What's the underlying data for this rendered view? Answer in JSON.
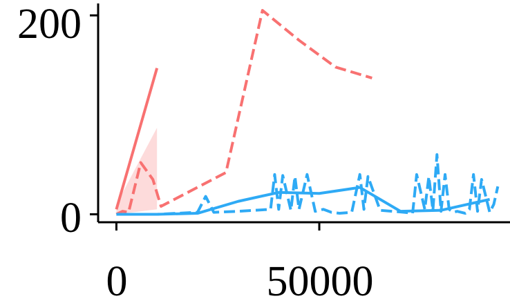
{
  "chart_data": {
    "type": "line",
    "title": "",
    "xlabel": "",
    "ylabel": "",
    "xlim": [
      -4500,
      97000
    ],
    "ylim": [
      -8,
      212
    ],
    "grid": false,
    "legend": "none",
    "x_ticks": [
      {
        "value": 0,
        "label": "0"
      },
      {
        "value": 50000,
        "label": "50000"
      }
    ],
    "y_ticks": [
      {
        "value": 0,
        "label": "0"
      },
      {
        "value": 200,
        "label": "200"
      }
    ],
    "series": [
      {
        "color": "#f87171",
        "style": "solid",
        "x": [
          0,
          10000
        ],
        "y": [
          5,
          147
        ],
        "band": {
          "x": [
            0,
            10000
          ],
          "lower": [
            0,
            5
          ],
          "upper": [
            10,
            87
          ]
        }
      },
      {
        "color": "#f87171",
        "style": "dashed",
        "x": [
          0,
          1500,
          3000,
          6000,
          9000,
          11000,
          27000,
          36000,
          45000,
          54000,
          63000
        ],
        "y": [
          0,
          3,
          2,
          52,
          35,
          8,
          42,
          205,
          175,
          148,
          137
        ]
      },
      {
        "color": "#2eaaf5",
        "style": "solid",
        "x": [
          0,
          10000,
          20000,
          30000,
          40000,
          50000,
          60000,
          70000,
          80000,
          92000
        ],
        "y": [
          0,
          0,
          1,
          13,
          22,
          21,
          27,
          3,
          4,
          15
        ]
      },
      {
        "color": "#2eaaf5",
        "style": "dashed",
        "x": [
          0,
          10000,
          20000,
          22000,
          24000,
          30000,
          38000,
          39000,
          40000,
          41000,
          43000,
          44000,
          45000,
          47000,
          49000,
          51000,
          53000,
          55000,
          58000,
          60000,
          61000,
          62000,
          65000,
          68000,
          71000,
          73000,
          74000,
          76000,
          77000,
          78000,
          79000,
          80000,
          81000,
          82000,
          83000,
          84000,
          86000,
          87000,
          88000,
          89000,
          90000,
          92000,
          93000,
          94000
        ],
        "y": [
          0,
          0,
          2,
          18,
          2,
          3,
          5,
          40,
          5,
          39,
          4,
          38,
          5,
          40,
          3,
          5,
          2,
          1,
          2,
          40,
          5,
          38,
          4,
          3,
          2,
          1,
          40,
          5,
          38,
          4,
          60,
          3,
          40,
          5,
          2,
          3,
          1,
          5,
          40,
          3,
          35,
          2,
          10,
          28
        ]
      }
    ]
  }
}
